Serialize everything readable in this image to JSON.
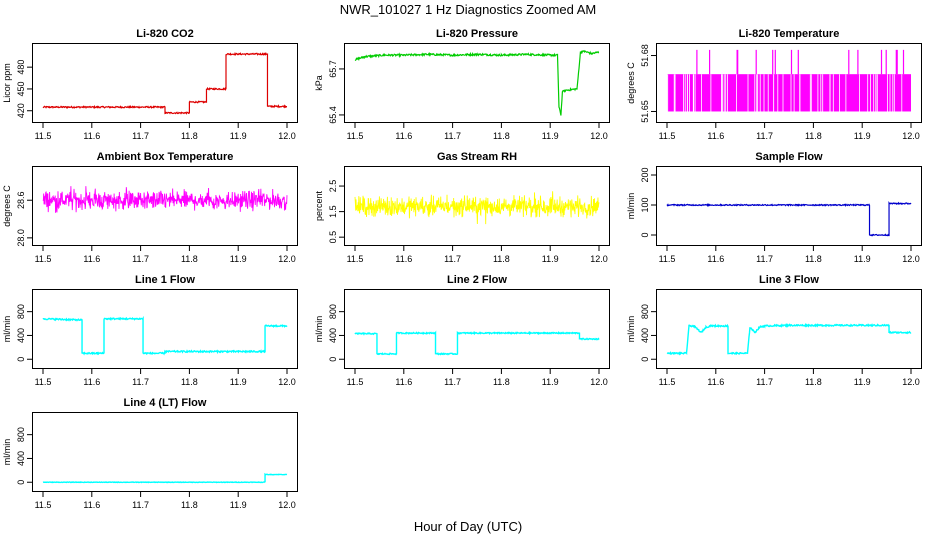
{
  "page": {
    "title": "NWR_101027  1 Hz Diagnostics Zoomed AM",
    "xlabel": "Hour of Day (UTC)"
  },
  "colors": {
    "red": "#dd0000",
    "green": "#00cc00",
    "magenta": "#ff00ff",
    "yellow": "#ffff00",
    "blue": "#0000cc",
    "cyan": "#00ffff",
    "axis": "#000000"
  },
  "chart_data": [
    {
      "type": "line",
      "title": "Li-820 CO2",
      "ylabel": "Licor ppm",
      "color": "red",
      "xlim": [
        11.5,
        12.0
      ],
      "ylim": [
        410,
        505
      ],
      "xticks": [
        11.5,
        11.6,
        11.7,
        11.8,
        11.9,
        12.0
      ],
      "xtick_labels": [
        "11.5",
        "11.6",
        "11.7",
        "11.8",
        "11.9",
        "12.0"
      ],
      "yticks": [
        420,
        450,
        480
      ],
      "ytick_labels": [
        "420",
        "450",
        "480"
      ],
      "style": "step",
      "series": [
        {
          "x": [
            11.5,
            11.75,
            11.75,
            11.8,
            11.8,
            11.835,
            11.835,
            11.875,
            11.875,
            11.96,
            11.96,
            12.0
          ],
          "y": [
            425,
            425,
            417,
            417,
            432,
            432,
            450,
            450,
            498,
            498,
            426,
            426
          ],
          "noise": 1
        }
      ]
    },
    {
      "type": "line",
      "title": "Li-820 Pressure",
      "ylabel": "kPa",
      "color": "green",
      "xlim": [
        11.5,
        12.0
      ],
      "ylim": [
        65.38,
        65.83
      ],
      "xticks": [
        11.5,
        11.6,
        11.7,
        11.8,
        11.9,
        12.0
      ],
      "xtick_labels": [
        "11.5",
        "11.6",
        "11.7",
        "11.8",
        "11.9",
        "12.0"
      ],
      "yticks": [
        65.4,
        65.7
      ],
      "ytick_labels": [
        "65.4",
        "65.7"
      ],
      "style": "line",
      "series": [
        {
          "x": [
            11.5,
            11.52,
            11.56,
            11.6,
            11.65,
            11.7,
            11.75,
            11.8,
            11.85,
            11.9,
            11.915,
            11.918,
            11.922,
            11.925,
            11.93,
            11.955,
            11.962,
            11.97,
            11.985,
            12.0
          ],
          "y": [
            65.76,
            65.78,
            65.79,
            65.79,
            65.795,
            65.79,
            65.795,
            65.79,
            65.795,
            65.79,
            65.79,
            65.45,
            65.4,
            65.55,
            65.56,
            65.57,
            65.81,
            65.815,
            65.8,
            65.81
          ],
          "noise": 0.006
        }
      ]
    },
    {
      "type": "line",
      "title": "Li-820 Temperature",
      "ylabel": "degrees C",
      "color": "magenta",
      "xlim": [
        11.5,
        12.0
      ],
      "ylim": [
        51.6465,
        51.6835
      ],
      "xticks": [
        11.5,
        11.6,
        11.7,
        11.8,
        11.9,
        12.0
      ],
      "xtick_labels": [
        "11.5",
        "11.6",
        "11.7",
        "11.8",
        "11.9",
        "12.0"
      ],
      "yticks": [
        51.65,
        51.68
      ],
      "ytick_labels": [
        "51.65",
        "51.68"
      ],
      "style": "binary",
      "series": [
        {
          "low": 51.65,
          "mid": 51.67,
          "high": 51.683
        }
      ]
    },
    {
      "type": "line",
      "title": "Ambient Box Temperature",
      "ylabel": "degrees C",
      "color": "magenta",
      "xlim": [
        11.5,
        12.0
      ],
      "ylim": [
        27.95,
        29.05
      ],
      "xticks": [
        11.5,
        11.6,
        11.7,
        11.8,
        11.9,
        12.0
      ],
      "xtick_labels": [
        "11.5",
        "11.6",
        "11.7",
        "11.8",
        "11.9",
        "12.0"
      ],
      "yticks": [
        28.0,
        28.6
      ],
      "ytick_labels": [
        "28.0",
        "28.6"
      ],
      "style": "noise",
      "series": [
        {
          "center": 28.6,
          "amp": 0.22
        }
      ]
    },
    {
      "type": "line",
      "title": "Gas Stream RH",
      "ylabel": "percent",
      "color": "yellow",
      "xlim": [
        11.5,
        12.0
      ],
      "ylim": [
        0.35,
        3.05
      ],
      "xticks": [
        11.5,
        11.6,
        11.7,
        11.8,
        11.9,
        12.0
      ],
      "xtick_labels": [
        "11.5",
        "11.6",
        "11.7",
        "11.8",
        "11.9",
        "12.0"
      ],
      "yticks": [
        0.5,
        1.5,
        2.5
      ],
      "ytick_labels": [
        "0.5",
        "1.5",
        "2.5"
      ],
      "style": "noise",
      "series": [
        {
          "center": 1.7,
          "amp": 0.55
        }
      ]
    },
    {
      "type": "line",
      "title": "Sample Flow",
      "ylabel": "ml/min",
      "color": "blue",
      "xlim": [
        11.5,
        12.0
      ],
      "ylim": [
        -20,
        210
      ],
      "xticks": [
        11.5,
        11.6,
        11.7,
        11.8,
        11.9,
        12.0
      ],
      "xtick_labels": [
        "11.5",
        "11.6",
        "11.7",
        "11.8",
        "11.9",
        "12.0"
      ],
      "yticks": [
        0,
        100,
        200
      ],
      "ytick_labels": [
        "0",
        "100",
        "200"
      ],
      "style": "step",
      "series": [
        {
          "x": [
            11.5,
            11.915,
            11.915,
            11.955,
            11.955,
            12.0
          ],
          "y": [
            100,
            100,
            0,
            0,
            105,
            105
          ],
          "noise": 2
        }
      ]
    },
    {
      "type": "line",
      "title": "Line 1 Flow",
      "ylabel": "ml/min",
      "color": "cyan",
      "xlim": [
        11.5,
        12.0
      ],
      "ylim": [
        -80,
        1080
      ],
      "xticks": [
        11.5,
        11.6,
        11.7,
        11.8,
        11.9,
        12.0
      ],
      "xtick_labels": [
        "11.5",
        "11.6",
        "11.7",
        "11.8",
        "11.9",
        "12.0"
      ],
      "yticks": [
        0,
        400,
        800
      ],
      "ytick_labels": [
        "0",
        "400",
        "800"
      ],
      "style": "step",
      "series": [
        {
          "x": [
            11.5,
            11.58,
            11.58,
            11.625,
            11.625,
            11.705,
            11.705,
            11.75,
            11.75,
            11.955,
            11.955,
            12.0
          ],
          "y": [
            680,
            660,
            100,
            100,
            680,
            680,
            100,
            100,
            130,
            130,
            560,
            560
          ],
          "noise": 12
        }
      ]
    },
    {
      "type": "line",
      "title": "Line 2 Flow",
      "ylabel": "ml/min",
      "color": "cyan",
      "xlim": [
        11.5,
        12.0
      ],
      "ylim": [
        -80,
        1080
      ],
      "xticks": [
        11.5,
        11.6,
        11.7,
        11.8,
        11.9,
        12.0
      ],
      "xtick_labels": [
        "11.5",
        "11.6",
        "11.7",
        "11.8",
        "11.9",
        "12.0"
      ],
      "yticks": [
        0,
        400,
        800
      ],
      "ytick_labels": [
        "0",
        "400",
        "800"
      ],
      "style": "step",
      "series": [
        {
          "x": [
            11.5,
            11.545,
            11.545,
            11.585,
            11.585,
            11.665,
            11.665,
            11.71,
            11.71,
            11.96,
            11.96,
            12.0
          ],
          "y": [
            430,
            430,
            90,
            90,
            440,
            440,
            90,
            90,
            440,
            440,
            340,
            340
          ],
          "noise": 10
        }
      ]
    },
    {
      "type": "line",
      "title": "Line 3 Flow",
      "ylabel": "ml/min",
      "color": "cyan",
      "xlim": [
        11.5,
        12.0
      ],
      "ylim": [
        -80,
        1080
      ],
      "xticks": [
        11.5,
        11.6,
        11.7,
        11.8,
        11.9,
        12.0
      ],
      "xtick_labels": [
        "11.5",
        "11.6",
        "11.7",
        "11.8",
        "11.9",
        "12.0"
      ],
      "yticks": [
        0,
        400,
        800
      ],
      "ytick_labels": [
        "0",
        "400",
        "800"
      ],
      "style": "step",
      "series": [
        {
          "x": [
            11.5,
            11.54,
            11.545,
            11.555,
            11.57,
            11.58,
            11.59,
            11.625,
            11.625,
            11.665,
            11.67,
            11.68,
            11.69,
            11.7,
            11.75,
            11.955,
            11.955,
            12.0
          ],
          "y": [
            100,
            100,
            560,
            560,
            450,
            540,
            560,
            560,
            100,
            100,
            540,
            450,
            540,
            560,
            570,
            570,
            450,
            450
          ],
          "noise": 12
        }
      ]
    },
    {
      "type": "line",
      "title": "Line 4 (LT) Flow",
      "ylabel": "ml/min",
      "color": "cyan",
      "xlim": [
        11.5,
        12.0
      ],
      "ylim": [
        -80,
        1080
      ],
      "xticks": [
        11.5,
        11.6,
        11.7,
        11.8,
        11.9,
        12.0
      ],
      "xtick_labels": [
        "11.5",
        "11.6",
        "11.7",
        "11.8",
        "11.9",
        "12.0"
      ],
      "yticks": [
        0,
        400,
        800
      ],
      "ytick_labels": [
        "0",
        "400",
        "800"
      ],
      "style": "step",
      "series": [
        {
          "x": [
            11.5,
            11.955,
            11.955,
            12.0
          ],
          "y": [
            0,
            0,
            130,
            130
          ],
          "noise": 4
        }
      ]
    }
  ]
}
